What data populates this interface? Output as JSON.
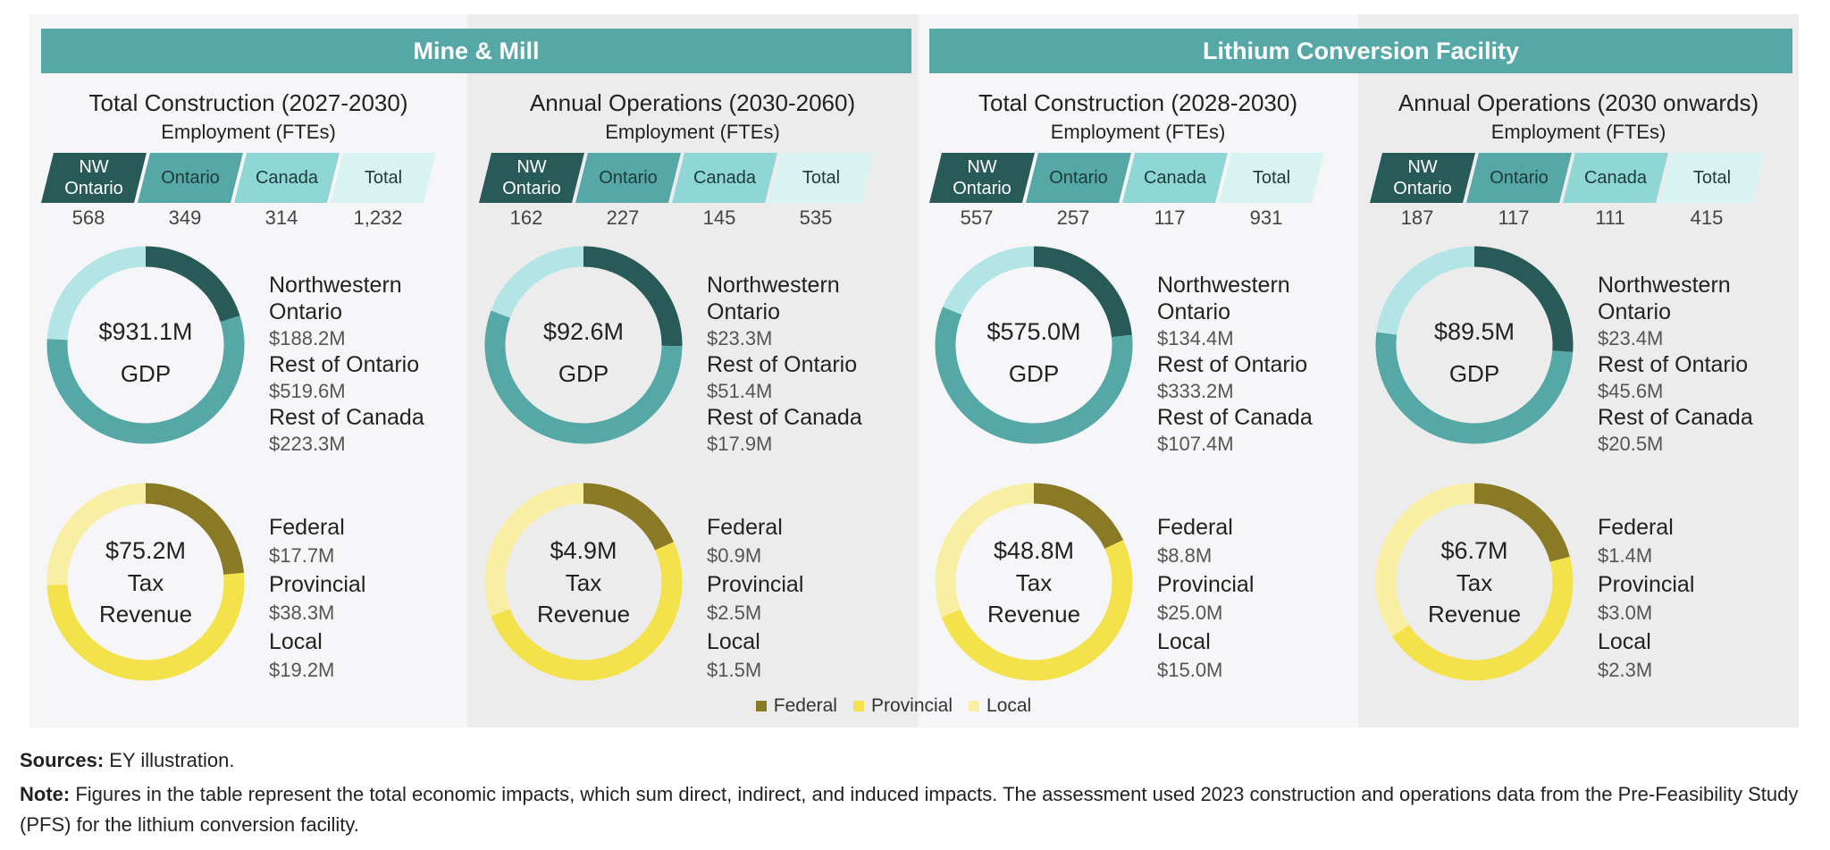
{
  "groups": [
    {
      "title": "Mine & Mill",
      "panels": [
        0,
        1
      ]
    },
    {
      "title": "Lithium Conversion Facility",
      "panels": [
        2,
        3
      ]
    }
  ],
  "employment_title": "Employment (FTEs)",
  "employment_columns": [
    {
      "label": "NW Ontario",
      "color": "#285a58",
      "text_color": "#ffffff"
    },
    {
      "label": "Ontario",
      "color": "#56a8a6",
      "text_color": "#1d3b3a"
    },
    {
      "label": "Canada",
      "color": "#8fd6d6",
      "text_color": "#1d3b3a"
    },
    {
      "label": "Total",
      "color": "#d9f3f3",
      "text_color": "#1d3b3a"
    }
  ],
  "gdp_label": "GDP",
  "gdp_regions": [
    {
      "name": "Northwestern Ontario",
      "color": "#285a58"
    },
    {
      "name": "Rest of Ontario",
      "color": "#56a8a6"
    },
    {
      "name": "Rest of Canada",
      "color": "#b3e5e6"
    }
  ],
  "tax_label": "Tax Revenue",
  "legend": [
    {
      "name": "Federal",
      "color": "#8a7a26"
    },
    {
      "name": "Provincial",
      "color": "#f4e24c"
    },
    {
      "name": "Local",
      "color": "#f8efa4"
    }
  ],
  "panels": [
    {
      "title": "Total Construction (2027-2030)",
      "employment": [
        568,
        349,
        314,
        {
          "value": 1232,
          "label": "1,232"
        }
      ],
      "gdp": {
        "total": {
          "value": 931.1,
          "label": "$931.1M"
        },
        "values": [
          188.2,
          519.6,
          223.3
        ],
        "value_labels": [
          "$188.2M",
          "$519.6M",
          "$223.3M"
        ]
      },
      "tax": {
        "total": {
          "value": 75.2,
          "label": "$75.2M"
        },
        "values": [
          17.7,
          38.3,
          19.2
        ],
        "value_labels": [
          "$17.7M",
          "$38.3M",
          "$19.2M"
        ]
      }
    },
    {
      "title": "Annual Operations (2030-2060)",
      "employment": [
        162,
        227,
        145,
        535
      ],
      "gdp": {
        "total": {
          "value": 92.6,
          "label": "$92.6M"
        },
        "values": [
          23.3,
          51.4,
          17.9
        ],
        "value_labels": [
          "$23.3M",
          "$51.4M",
          "$17.9M"
        ]
      },
      "tax": {
        "total": {
          "value": 4.9,
          "label": "$4.9M"
        },
        "values": [
          0.9,
          2.5,
          1.5
        ],
        "value_labels": [
          "$0.9M",
          "$2.5M",
          "$1.5M"
        ]
      }
    },
    {
      "title": "Total Construction (2028-2030)",
      "employment": [
        557,
        257,
        117,
        931
      ],
      "gdp": {
        "total": {
          "value": 575.0,
          "label": "$575.0M"
        },
        "values": [
          134.4,
          333.2,
          107.4
        ],
        "value_labels": [
          "$134.4M",
          "$333.2M",
          "$107.4M"
        ]
      },
      "tax": {
        "total": {
          "value": 48.8,
          "label": "$48.8M"
        },
        "values": [
          8.8,
          25.0,
          15.0
        ],
        "value_labels": [
          "$8.8M",
          "$25.0M",
          "$15.0M"
        ]
      }
    },
    {
      "title": "Annual Operations (2030 onwards)",
      "employment": [
        187,
        117,
        111,
        415
      ],
      "gdp": {
        "total": {
          "value": 89.5,
          "label": "$89.5M"
        },
        "values": [
          23.4,
          45.6,
          20.5
        ],
        "value_labels": [
          "$23.4M",
          "$45.6M",
          "$20.5M"
        ]
      },
      "tax": {
        "total": {
          "value": 6.7,
          "label": "$6.7M"
        },
        "values": [
          1.4,
          3.0,
          2.3
        ],
        "value_labels": [
          "$1.4M",
          "$3.0M",
          "$2.3M"
        ]
      }
    }
  ],
  "footer": {
    "sources_label": "Sources:",
    "sources": "EY illustration.",
    "note_label": "Note:",
    "note": "Figures in the table represent the total economic impacts, which sum direct, indirect, and induced impacts. The assessment used 2023 construction and operations data from the Pre-Feasibility Study (PFS) for the lithium conversion facility."
  }
}
